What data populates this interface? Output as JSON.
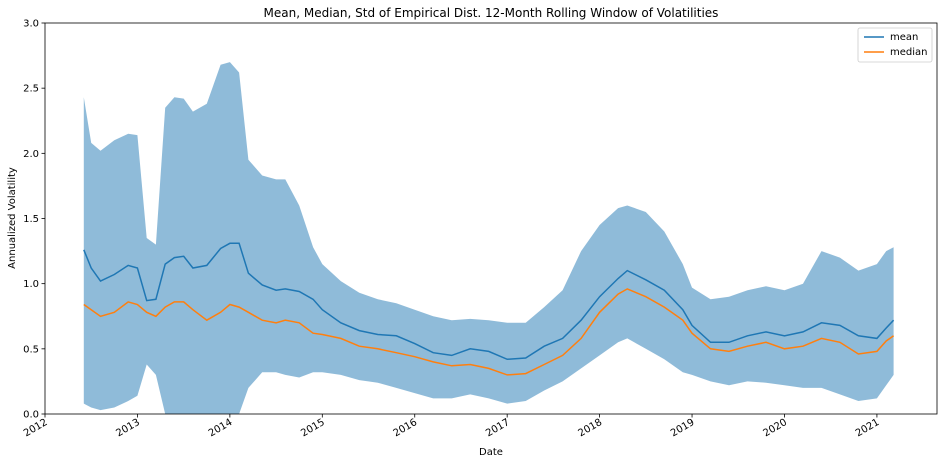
{
  "chart_data": {
    "type": "line",
    "title": "Mean, Median, Std of Empirical Dist. 12-Month Rolling Window of Volatilities",
    "xlabel": "Date",
    "ylabel": "Annualized Volatility",
    "xlim": [
      2012.0,
      2021.65
    ],
    "ylim": [
      0.0,
      3.0
    ],
    "xticks": [
      "2012",
      "2013",
      "2014",
      "2015",
      "2016",
      "2017",
      "2018",
      "2019",
      "2020",
      "2021"
    ],
    "yticks": [
      "0.0",
      "0.5",
      "1.0",
      "1.5",
      "2.0",
      "2.5",
      "3.0"
    ],
    "grid": false,
    "legend_position": "top-right",
    "colors": {
      "mean": "#1f77b4",
      "median": "#ff7f0e",
      "band": "#1f77b4"
    },
    "x": [
      2012.42,
      2012.5,
      2012.6,
      2012.75,
      2012.9,
      2013.0,
      2013.1,
      2013.2,
      2013.3,
      2013.4,
      2013.5,
      2013.6,
      2013.75,
      2013.9,
      2014.0,
      2014.1,
      2014.2,
      2014.35,
      2014.5,
      2014.6,
      2014.75,
      2014.9,
      2015.0,
      2015.2,
      2015.4,
      2015.6,
      2015.8,
      2016.0,
      2016.2,
      2016.4,
      2016.6,
      2016.8,
      2017.0,
      2017.2,
      2017.4,
      2017.6,
      2017.8,
      2018.0,
      2018.2,
      2018.3,
      2018.5,
      2018.7,
      2018.9,
      2019.0,
      2019.2,
      2019.4,
      2019.6,
      2019.8,
      2020.0,
      2020.2,
      2020.4,
      2020.6,
      2020.8,
      2021.0,
      2021.1,
      2021.18
    ],
    "series": [
      {
        "name": "mean",
        "values": [
          1.26,
          1.12,
          1.02,
          1.07,
          1.14,
          1.12,
          0.87,
          0.88,
          1.15,
          1.2,
          1.21,
          1.12,
          1.14,
          1.27,
          1.31,
          1.31,
          1.08,
          0.99,
          0.95,
          0.96,
          0.94,
          0.88,
          0.8,
          0.7,
          0.64,
          0.61,
          0.6,
          0.54,
          0.47,
          0.45,
          0.5,
          0.48,
          0.42,
          0.43,
          0.52,
          0.58,
          0.72,
          0.9,
          1.04,
          1.1,
          1.03,
          0.95,
          0.8,
          0.68,
          0.55,
          0.55,
          0.6,
          0.63,
          0.6,
          0.63,
          0.7,
          0.68,
          0.6,
          0.58,
          0.66,
          0.72
        ]
      },
      {
        "name": "median",
        "values": [
          0.84,
          0.8,
          0.75,
          0.78,
          0.86,
          0.84,
          0.78,
          0.75,
          0.82,
          0.86,
          0.86,
          0.8,
          0.72,
          0.78,
          0.84,
          0.82,
          0.78,
          0.72,
          0.7,
          0.72,
          0.7,
          0.62,
          0.61,
          0.58,
          0.52,
          0.5,
          0.47,
          0.44,
          0.4,
          0.37,
          0.38,
          0.35,
          0.3,
          0.31,
          0.38,
          0.45,
          0.58,
          0.78,
          0.92,
          0.96,
          0.9,
          0.82,
          0.72,
          0.62,
          0.5,
          0.48,
          0.52,
          0.55,
          0.5,
          0.52,
          0.58,
          0.55,
          0.46,
          0.48,
          0.56,
          0.6
        ]
      },
      {
        "name": "std_upper",
        "values": [
          2.43,
          2.08,
          2.02,
          2.1,
          2.15,
          2.14,
          1.35,
          1.3,
          2.35,
          2.43,
          2.42,
          2.32,
          2.38,
          2.68,
          2.7,
          2.62,
          1.95,
          1.83,
          1.8,
          1.8,
          1.6,
          1.28,
          1.15,
          1.02,
          0.93,
          0.88,
          0.85,
          0.8,
          0.75,
          0.72,
          0.73,
          0.72,
          0.7,
          0.7,
          0.82,
          0.95,
          1.25,
          1.45,
          1.58,
          1.6,
          1.55,
          1.4,
          1.15,
          0.97,
          0.88,
          0.9,
          0.95,
          0.98,
          0.95,
          1.0,
          1.25,
          1.2,
          1.1,
          1.15,
          1.25,
          1.28
        ]
      },
      {
        "name": "std_lower",
        "values": [
          0.08,
          0.05,
          0.03,
          0.05,
          0.1,
          0.14,
          0.38,
          0.3,
          0.0,
          0.0,
          0.0,
          0.0,
          0.0,
          0.0,
          0.0,
          0.0,
          0.2,
          0.32,
          0.32,
          0.3,
          0.28,
          0.32,
          0.32,
          0.3,
          0.26,
          0.24,
          0.2,
          0.16,
          0.12,
          0.12,
          0.15,
          0.12,
          0.08,
          0.1,
          0.18,
          0.25,
          0.35,
          0.45,
          0.55,
          0.58,
          0.5,
          0.42,
          0.32,
          0.3,
          0.25,
          0.22,
          0.25,
          0.24,
          0.22,
          0.2,
          0.2,
          0.15,
          0.1,
          0.12,
          0.22,
          0.3
        ]
      }
    ]
  }
}
